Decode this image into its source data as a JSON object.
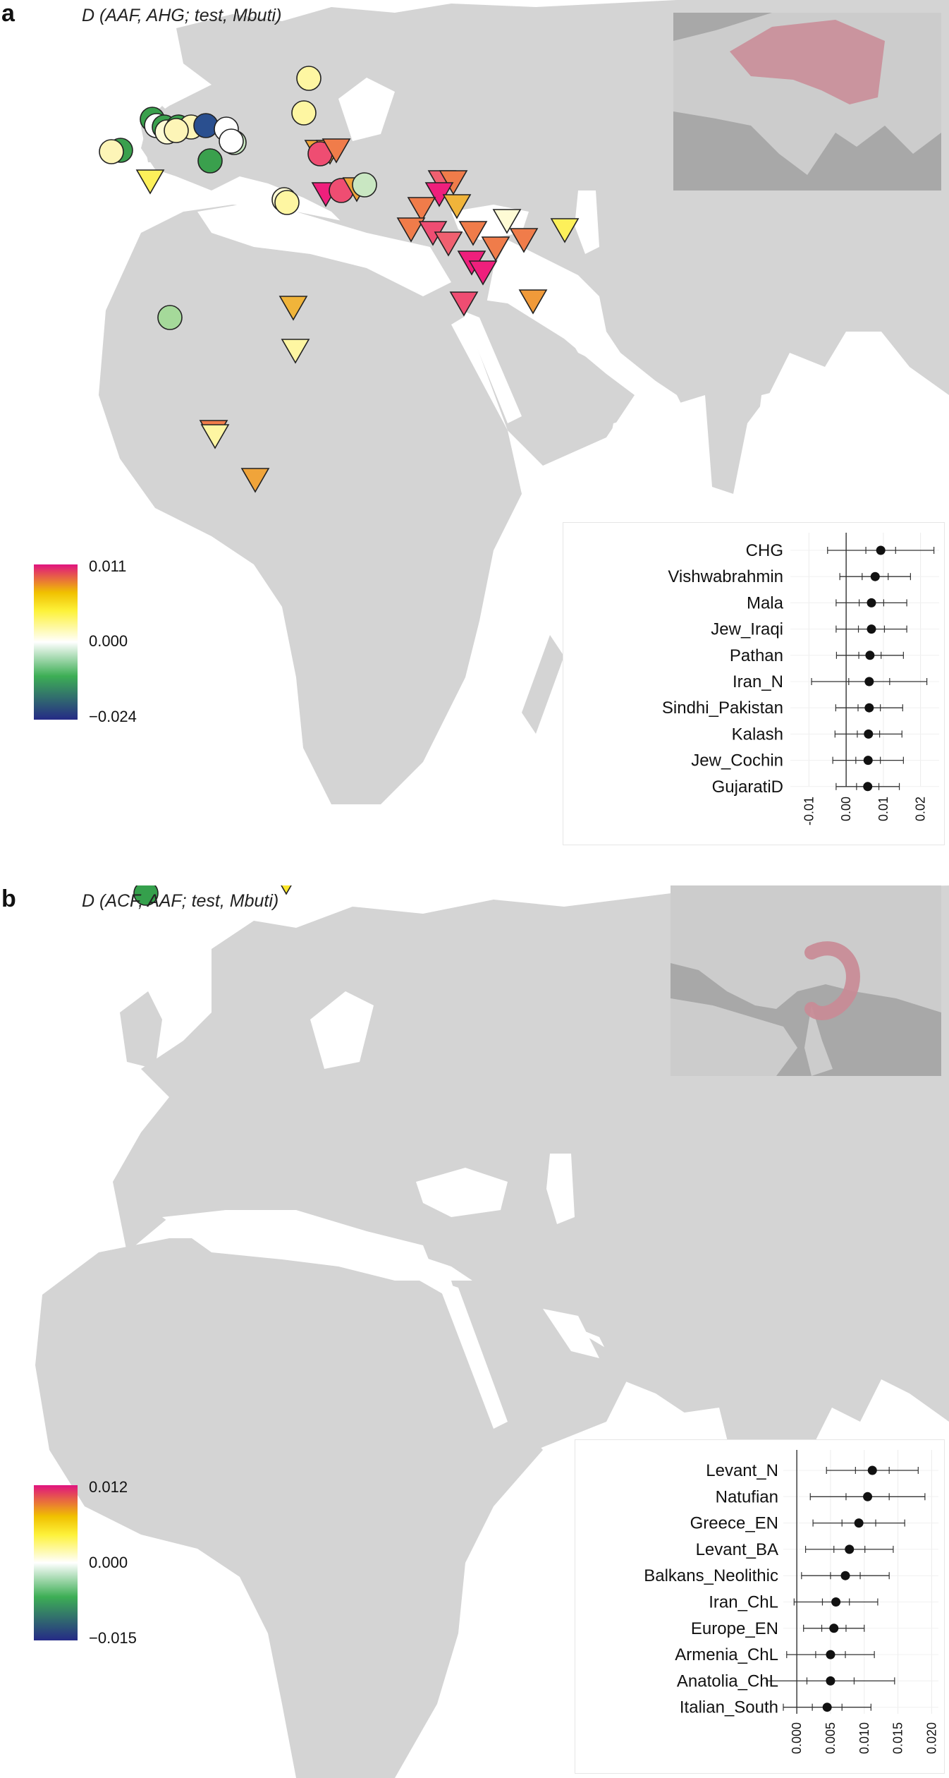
{
  "panels": [
    {
      "label": "a",
      "title": "D (AAF, AHG; test, Mbuti)",
      "legend": {
        "max": "0.011",
        "mid": "0.000",
        "min": "−0.024"
      },
      "plot": {
        "x_ticks": [
          "-0.01",
          "0.00",
          "0.01",
          "0.02"
        ],
        "xlim": [
          -0.015,
          0.025
        ],
        "rows": [
          {
            "label": "CHG",
            "d": 0.0093,
            "se1": 0.004,
            "se3": 0.0143
          },
          {
            "label": "Vishwabrahmin",
            "d": 0.0078,
            "se1": 0.0035,
            "se3": 0.0095
          },
          {
            "label": "Mala",
            "d": 0.0068,
            "se1": 0.0033,
            "se3": 0.0095
          },
          {
            "label": "Jew_Iraqi",
            "d": 0.0068,
            "se1": 0.0035,
            "se3": 0.0095
          },
          {
            "label": "Pathan",
            "d": 0.0064,
            "se1": 0.003,
            "se3": 0.009
          },
          {
            "label": "Iran_N",
            "d": 0.0062,
            "se1": 0.0055,
            "se3": 0.0155
          },
          {
            "label": "Sindhi_Pakistan",
            "d": 0.0062,
            "se1": 0.003,
            "se3": 0.009
          },
          {
            "label": "Kalash",
            "d": 0.006,
            "se1": 0.003,
            "se3": 0.009
          },
          {
            "label": "Jew_Cochin",
            "d": 0.0059,
            "se1": 0.0033,
            "se3": 0.0095
          },
          {
            "label": "GujaratiD",
            "d": 0.0058,
            "se1": 0.003,
            "se3": 0.0085
          }
        ]
      }
    },
    {
      "label": "b",
      "title": "D (ACF, AAF; test, Mbuti)",
      "legend": {
        "max": "0.012",
        "mid": "0.000",
        "min": "−0.015"
      },
      "plot": {
        "x_ticks": [
          "0.000",
          "0.005",
          "0.010",
          "0.015",
          "0.020"
        ],
        "xlim": [
          -0.002,
          0.021
        ],
        "rows": [
          {
            "label": "Levant_N",
            "d": 0.0112,
            "se1": 0.0025,
            "se3": 0.0068
          },
          {
            "label": "Natufian",
            "d": 0.0105,
            "se1": 0.0032,
            "se3": 0.0085
          },
          {
            "label": "Greece_EN",
            "d": 0.0092,
            "se1": 0.0025,
            "se3": 0.0068
          },
          {
            "label": "Levant_BA",
            "d": 0.0078,
            "se1": 0.0023,
            "se3": 0.0065
          },
          {
            "label": "Balkans_Neolithic",
            "d": 0.0072,
            "se1": 0.0022,
            "se3": 0.0065
          },
          {
            "label": "Iran_ChL",
            "d": 0.0058,
            "se1": 0.002,
            "se3": 0.0062
          },
          {
            "label": "Europe_EN",
            "d": 0.0055,
            "se1": 0.0018,
            "se3": 0.0045
          },
          {
            "label": "Armenia_ChL",
            "d": 0.005,
            "se1": 0.0022,
            "se3": 0.0065
          },
          {
            "label": "Anatolia_ChL",
            "d": 0.005,
            "se1": 0.0035,
            "se3": 0.0095
          },
          {
            "label": "Italian_South",
            "d": 0.0045,
            "se1": 0.0022,
            "se3": 0.0065
          }
        ]
      }
    }
  ],
  "chart_data": [
    {
      "type": "scatter",
      "title": "D (AAF, AHG; test, Mbuti)",
      "categories": [
        "CHG",
        "Vishwabrahmin",
        "Mala",
        "Jew_Iraqi",
        "Pathan",
        "Iran_N",
        "Sindhi_Pakistan",
        "Kalash",
        "Jew_Cochin",
        "GujaratiD"
      ],
      "values": [
        0.0093,
        0.0078,
        0.0068,
        0.0068,
        0.0064,
        0.0062,
        0.0062,
        0.006,
        0.0059,
        0.0058
      ],
      "xlim": [
        -0.015,
        0.025
      ]
    },
    {
      "type": "scatter",
      "title": "D (ACF, AAF; test, Mbuti)",
      "categories": [
        "Levant_N",
        "Natufian",
        "Greece_EN",
        "Levant_BA",
        "Balkans_Neolithic",
        "Iran_ChL",
        "Europe_EN",
        "Armenia_ChL",
        "Anatolia_ChL",
        "Italian_South"
      ],
      "values": [
        0.0112,
        0.0105,
        0.0092,
        0.0078,
        0.0072,
        0.0058,
        0.0055,
        0.005,
        0.005,
        0.0045
      ],
      "xlim": [
        -0.002,
        0.021
      ]
    }
  ],
  "colors": {
    "land": "#d4d4d4",
    "sea": "#ffffff",
    "inset_bg": "#a8a8a8",
    "inset_land": "#cccccc",
    "range": "#c98a95",
    "scale": [
      "#e0137f",
      "#f0c000",
      "#fdf23a",
      "#ffffff",
      "#3dae55",
      "#252a86"
    ]
  },
  "icons": {
    "triangle": "inverted-triangle-icon",
    "circle": "circle-marker-icon"
  }
}
